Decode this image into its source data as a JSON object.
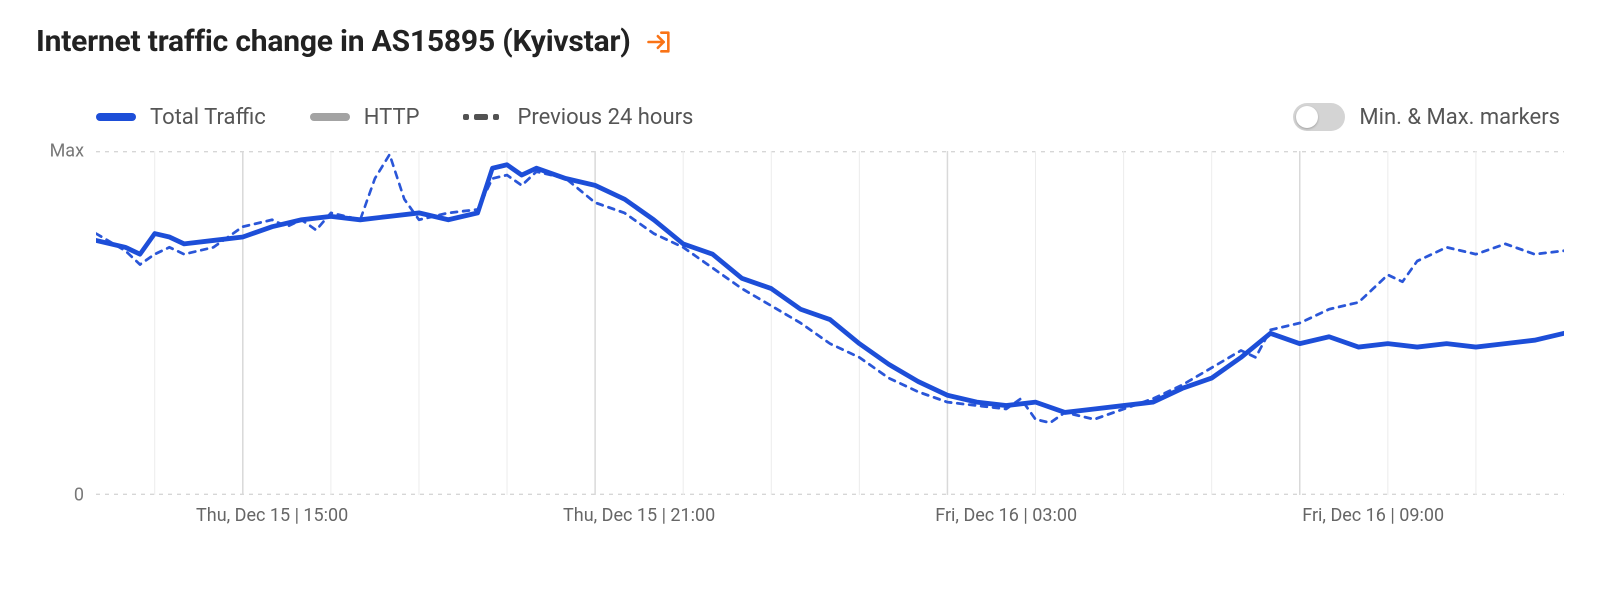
{
  "title": "Internet traffic change in AS15895 (Kyivstar)",
  "icon_color": "#f97316",
  "legend": {
    "series_a": {
      "label": "Total Traffic",
      "color": "#1d4ed8",
      "style": "solid"
    },
    "series_b": {
      "label": "HTTP",
      "color": "#a3a3a3",
      "style": "solid"
    },
    "series_c": {
      "label": "Previous 24 hours",
      "color": "#525252",
      "style": "dash"
    }
  },
  "toggle": {
    "label": "Min. & Max. markers",
    "on": false,
    "track_color": "#d4d4d4",
    "knob_color": "#ffffff"
  },
  "chart": {
    "type": "line",
    "background_color": "#ffffff",
    "grid_color": "#d6d6d6",
    "axis_baseline_color": "#cfcfcf",
    "ylim": [
      0,
      100
    ],
    "yticks": [
      {
        "value": 100,
        "label": "Max"
      },
      {
        "value": 0,
        "label": "0"
      }
    ],
    "x_gridlines": [
      10,
      34,
      58,
      82
    ],
    "x_minor_gridlines": [
      4,
      16,
      22,
      28,
      40,
      46,
      52,
      64,
      70,
      76,
      88,
      94
    ],
    "xticks": [
      {
        "pos": 12,
        "label": "Thu, Dec 15 | 15:00"
      },
      {
        "pos": 37,
        "label": "Thu, Dec 15 | 21:00"
      },
      {
        "pos": 62,
        "label": "Fri, Dec 16 | 03:00"
      },
      {
        "pos": 87,
        "label": "Fri, Dec 16 | 09:00"
      }
    ],
    "series_total": {
      "color": "#1d4ed8",
      "line_width": 4.5,
      "dash": null,
      "points": [
        [
          0,
          74
        ],
        [
          2,
          72
        ],
        [
          3,
          70
        ],
        [
          4,
          76
        ],
        [
          5,
          75
        ],
        [
          6,
          73
        ],
        [
          8,
          74
        ],
        [
          10,
          75
        ],
        [
          12,
          78
        ],
        [
          14,
          80
        ],
        [
          16,
          81
        ],
        [
          18,
          80
        ],
        [
          20,
          81
        ],
        [
          22,
          82
        ],
        [
          24,
          80
        ],
        [
          26,
          82
        ],
        [
          27,
          95
        ],
        [
          28,
          96
        ],
        [
          29,
          93
        ],
        [
          30,
          95
        ],
        [
          32,
          92
        ],
        [
          34,
          90
        ],
        [
          36,
          86
        ],
        [
          38,
          80
        ],
        [
          40,
          73
        ],
        [
          42,
          70
        ],
        [
          44,
          63
        ],
        [
          46,
          60
        ],
        [
          48,
          54
        ],
        [
          50,
          51
        ],
        [
          52,
          44
        ],
        [
          54,
          38
        ],
        [
          56,
          33
        ],
        [
          58,
          29
        ],
        [
          60,
          27
        ],
        [
          62,
          26
        ],
        [
          64,
          27
        ],
        [
          66,
          24
        ],
        [
          68,
          25
        ],
        [
          70,
          26
        ],
        [
          72,
          27
        ],
        [
          74,
          31
        ],
        [
          76,
          34
        ],
        [
          78,
          40
        ],
        [
          80,
          47
        ],
        [
          82,
          44
        ],
        [
          84,
          46
        ],
        [
          86,
          43
        ],
        [
          88,
          44
        ],
        [
          90,
          43
        ],
        [
          92,
          44
        ],
        [
          94,
          43
        ],
        [
          96,
          44
        ],
        [
          98,
          45
        ],
        [
          100,
          47
        ]
      ]
    },
    "series_prev": {
      "color": "#2a56d8",
      "line_width": 2.6,
      "dash": "6,6",
      "points": [
        [
          0,
          76
        ],
        [
          2,
          71
        ],
        [
          3,
          67
        ],
        [
          4,
          70
        ],
        [
          5,
          72
        ],
        [
          6,
          70
        ],
        [
          8,
          72
        ],
        [
          10,
          78
        ],
        [
          12,
          80
        ],
        [
          13,
          78
        ],
        [
          14,
          80
        ],
        [
          15,
          77
        ],
        [
          16,
          82
        ],
        [
          17,
          81
        ],
        [
          18,
          80
        ],
        [
          19,
          92
        ],
        [
          20,
          99
        ],
        [
          21,
          86
        ],
        [
          22,
          80
        ],
        [
          24,
          82
        ],
        [
          26,
          83
        ],
        [
          27,
          92
        ],
        [
          28,
          93
        ],
        [
          29,
          90
        ],
        [
          30,
          94
        ],
        [
          32,
          92
        ],
        [
          34,
          85
        ],
        [
          36,
          82
        ],
        [
          38,
          76
        ],
        [
          40,
          72
        ],
        [
          42,
          66
        ],
        [
          44,
          60
        ],
        [
          46,
          55
        ],
        [
          48,
          50
        ],
        [
          50,
          44
        ],
        [
          52,
          40
        ],
        [
          54,
          34
        ],
        [
          56,
          30
        ],
        [
          58,
          27
        ],
        [
          60,
          26
        ],
        [
          62,
          25
        ],
        [
          63,
          28
        ],
        [
          64,
          22
        ],
        [
          65,
          21
        ],
        [
          66,
          24
        ],
        [
          68,
          22
        ],
        [
          70,
          25
        ],
        [
          72,
          28
        ],
        [
          74,
          32
        ],
        [
          76,
          37
        ],
        [
          78,
          42
        ],
        [
          79,
          40
        ],
        [
          80,
          48
        ],
        [
          82,
          50
        ],
        [
          84,
          54
        ],
        [
          86,
          56
        ],
        [
          87,
          60
        ],
        [
          88,
          64
        ],
        [
          89,
          62
        ],
        [
          90,
          68
        ],
        [
          92,
          72
        ],
        [
          94,
          70
        ],
        [
          96,
          73
        ],
        [
          98,
          70
        ],
        [
          100,
          71
        ]
      ]
    }
  }
}
